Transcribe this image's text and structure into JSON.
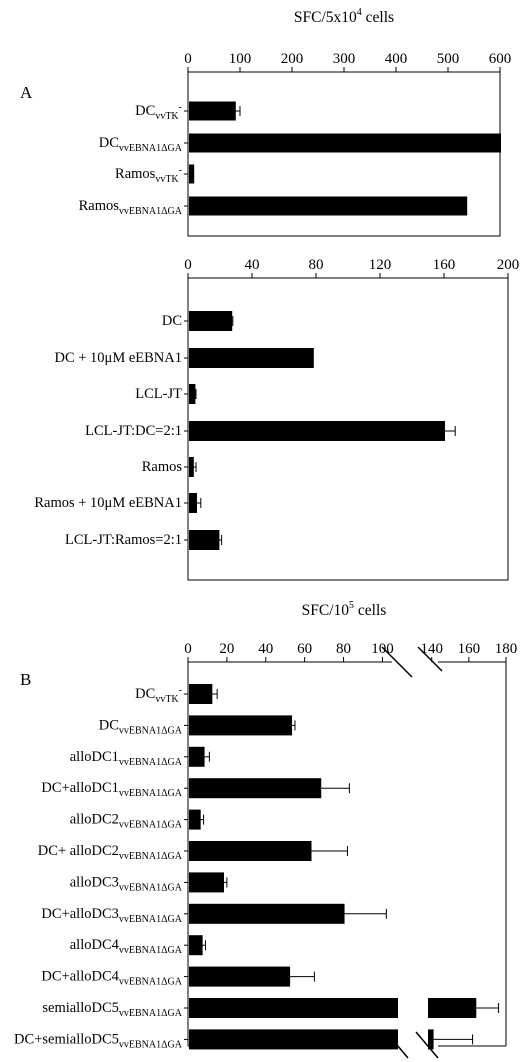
{
  "chart_data": [
    {
      "panel": "A",
      "type": "bar",
      "orientation": "horizontal",
      "xlabel": "SFC/5x10<sup>4</sup> cells",
      "xlabel_base": "SFC/5x10",
      "xlabel_exp": "4",
      "xlabel_suffix": " cells",
      "xlim": [
        0,
        600
      ],
      "xticks": [
        "0",
        "100",
        "200",
        "300",
        "400",
        "500",
        "600"
      ],
      "categories": [
        {
          "main": "DC",
          "sub": "vvTK",
          "sup": "-"
        },
        {
          "main": "DC",
          "sub": "vvEBNA1ΔGA",
          "sup": ""
        },
        {
          "main": "Ramos",
          "sub": "vvTK",
          "sup": "-"
        },
        {
          "main": "Ramos",
          "sub": "vvEBNA1ΔGA",
          "sup": ""
        }
      ],
      "values": [
        90,
        600,
        10,
        535
      ],
      "errors": [
        10,
        0,
        0,
        0
      ]
    },
    {
      "type": "bar",
      "orientation": "horizontal",
      "xlim": [
        0,
        200
      ],
      "xticks": [
        "0",
        "40",
        "80",
        "120",
        "160",
        "200"
      ],
      "categories": [
        {
          "main": "DC",
          "sub": "",
          "sup": ""
        },
        {
          "main": "DC + 10μM eEBNA1",
          "sub": "",
          "sup": ""
        },
        {
          "main": "LCL-JT",
          "sub": "",
          "sup": ""
        },
        {
          "main": "LCL-JT:DC=2:1",
          "sub": "",
          "sup": ""
        },
        {
          "main": "Ramos",
          "sub": "",
          "sup": ""
        },
        {
          "main": "Ramos + 10μM eEBNA1",
          "sub": "",
          "sup": ""
        },
        {
          "main": "LCL-JT:Ramos=2:1",
          "sub": "",
          "sup": ""
        }
      ],
      "values": [
        27,
        78,
        4,
        160,
        3,
        5,
        19
      ],
      "errors": [
        1,
        0,
        1,
        7,
        2,
        3,
        2
      ]
    },
    {
      "panel": "B",
      "type": "bar",
      "orientation": "horizontal",
      "xlabel_base": "SFC/10",
      "xlabel_exp": "5",
      "xlabel_suffix": " cells",
      "axis_break": [
        108,
        138
      ],
      "xlim": [
        0,
        180
      ],
      "xticks": [
        "0",
        "20",
        "40",
        "60",
        "80",
        "100",
        "140",
        "160",
        "180"
      ],
      "categories": [
        {
          "main": "DC",
          "sub": "vvTK",
          "sup": "-"
        },
        {
          "main": "DC",
          "sub": "vvEBNA1ΔGA",
          "sup": ""
        },
        {
          "main": "alloDC1",
          "sub": "vvEBNA1ΔGA",
          "sup": ""
        },
        {
          "main": "DC+alloDC1",
          "sub": "vvEBNA1ΔGA",
          "sup": ""
        },
        {
          "main": "alloDC2",
          "sub": "vvEBNA1ΔGA",
          "sup": ""
        },
        {
          "main": "DC+ alloDC2",
          "sub": "vvEBNA1ΔGA",
          "sup": ""
        },
        {
          "main": "alloDC3",
          "sub": "vvEBNA1ΔGA",
          "sup": ""
        },
        {
          "main": "DC+alloDC3",
          "sub": "vvEBNA1ΔGA",
          "sup": ""
        },
        {
          "main": "alloDC4",
          "sub": "vvEBNA1ΔGA",
          "sup": ""
        },
        {
          "main": "DC+alloDC4",
          "sub": "vvEBNA1ΔGA",
          "sup": ""
        },
        {
          "main": "semialloDC5",
          "sub": "vvEBNA1ΔGA",
          "sup": ""
        },
        {
          "main": "DC+semialloDC5",
          "sub": "vvEBNA1ΔGA",
          "sup": ""
        }
      ],
      "values": [
        12,
        53,
        8,
        68,
        6,
        63,
        18,
        80,
        7,
        52,
        164,
        141
      ],
      "errors": [
        3,
        2,
        3,
        15,
        2,
        19,
        2,
        22,
        2,
        13,
        12,
        21
      ]
    }
  ]
}
